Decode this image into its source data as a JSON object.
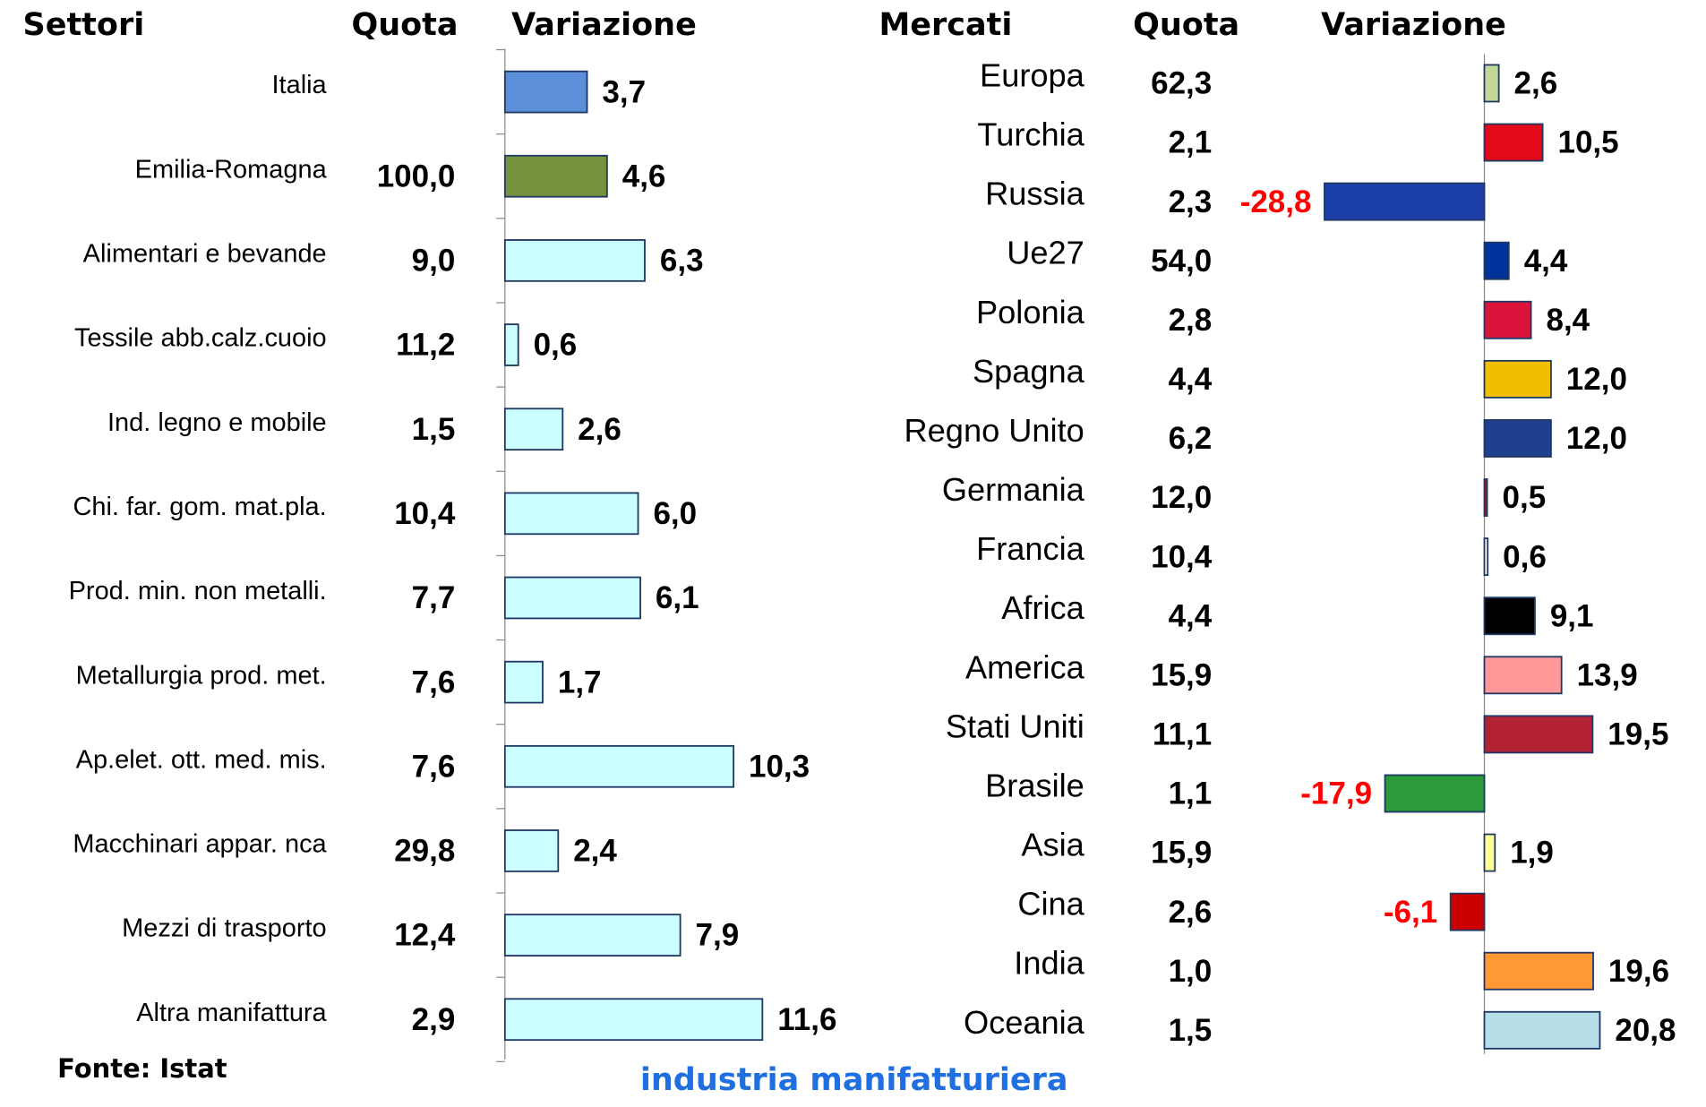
{
  "chart_data": [
    {
      "type": "hbar",
      "category_label": "Settori",
      "categories": [
        "Italia",
        "Emilia-Romagna",
        "Alimentari e bevande",
        "Tessile abb.calz.cuoio",
        "Ind. legno e mobile",
        "Chi. far. gom. mat.pla.",
        "Prod. min. non metalli.",
        "Metallurgia prod. met.",
        "Ap.elet. ott. med. mis.",
        "Macchinari appar. nca",
        "Mezzi di trasporto",
        "Altra manifattura"
      ],
      "series": [
        {
          "name": "Quota",
          "values": [
            null,
            100.0,
            9.0,
            11.2,
            1.5,
            10.4,
            7.7,
            7.6,
            7.6,
            29.8,
            12.4,
            2.9
          ],
          "value_labels": [
            null,
            "100,0",
            "9,0",
            "11,2",
            "1,5",
            "10,4",
            "7,7",
            "7,6",
            "7,6",
            "29,8",
            "12,4",
            "2,9"
          ]
        },
        {
          "name": "Variazione",
          "values": [
            3.7,
            4.6,
            6.3,
            0.6,
            2.6,
            6.0,
            6.1,
            1.7,
            10.3,
            2.4,
            7.9,
            11.6
          ],
          "value_labels": [
            "3,7",
            "4,6",
            "6,3",
            "0,6",
            "2,6",
            "6,0",
            "6,1",
            "1,7",
            "10,3",
            "2,4",
            "7,9",
            "11,6"
          ],
          "colors": [
            "#5b8fd9",
            "#76923c",
            "#ccffff",
            "#ccffff",
            "#ccffff",
            "#ccffff",
            "#ccffff",
            "#ccffff",
            "#ccffff",
            "#ccffff",
            "#ccffff",
            "#ccffff"
          ]
        }
      ],
      "xlim": [
        0,
        15
      ]
    },
    {
      "type": "hbar",
      "category_label": "Mercati",
      "categories": [
        "Europa",
        "Turchia",
        "Russia",
        "Ue27",
        "Polonia",
        "Spagna",
        "Regno Unito",
        "Germania",
        "Francia",
        "Africa",
        "America",
        "Stati Uniti",
        "Brasile",
        "Asia",
        "Cina",
        "India",
        "Oceania"
      ],
      "series": [
        {
          "name": "Quota",
          "values": [
            62.3,
            2.1,
            2.3,
            54.0,
            2.8,
            4.4,
            6.2,
            12.0,
            10.4,
            4.4,
            15.9,
            11.1,
            1.1,
            15.9,
            2.6,
            1.0,
            1.5
          ],
          "value_labels": [
            "62,3",
            "2,1",
            "2,3",
            "54,0",
            "2,8",
            "4,4",
            "6,2",
            "12,0",
            "10,4",
            "4,4",
            "15,9",
            "11,1",
            "1,1",
            "15,9",
            "2,6",
            "1,0",
            "1,5"
          ]
        },
        {
          "name": "Variazione",
          "values": [
            2.6,
            10.5,
            -28.8,
            4.4,
            8.4,
            12.0,
            12.0,
            0.5,
            0.6,
            9.1,
            13.9,
            19.5,
            -17.9,
            1.9,
            -6.1,
            19.6,
            20.8
          ],
          "value_labels": [
            "2,6",
            "10,5",
            "-28,8",
            "4,4",
            "8,4",
            "12,0",
            "12,0",
            "0,5",
            "0,6",
            "9,1",
            "13,9",
            "19,5",
            "-17,9",
            "1,9",
            "-6,1",
            "19,6",
            "20,8"
          ],
          "colors": [
            "#c4d79b",
            "#e30a17",
            "#1c3fa8",
            "#003399",
            "#dc143c",
            "#f1bf00",
            "#1f3f8f",
            "#cc0000",
            "#ffffff",
            "#000000",
            "#ff9999",
            "#b22234",
            "#2a9a3a",
            "#ffff99",
            "#cc0000",
            "#ff9933",
            "#b7dde8"
          ]
        }
      ],
      "xlim": [
        -30,
        25
      ]
    }
  ],
  "source": "Fonte: Istat",
  "footer": "industria manifatturiera"
}
